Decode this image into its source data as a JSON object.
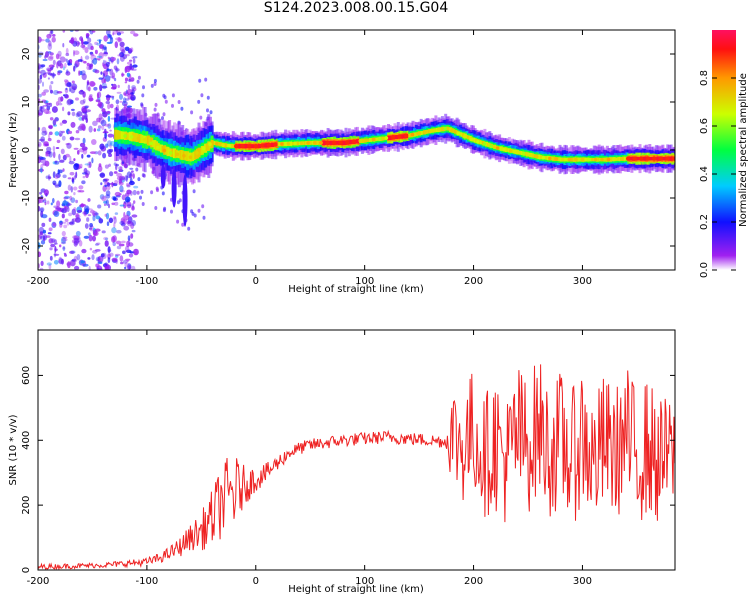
{
  "title": "S124.2023.008.00.15.G04",
  "colors": {
    "snr_line": "#ee2222",
    "axis": "#000000",
    "ridge": "rainbow"
  },
  "top_panel": {
    "xlabel": "Height of straight line (km)",
    "ylabel": "Frequency (Hz)",
    "colorbar_label": "Normalized spectral amplitude"
  },
  "bottom_panel": {
    "xlabel": "Height of straight line (km)",
    "ylabel": "SNR (10 * v/v)"
  },
  "chart_data": [
    {
      "type": "heatmap",
      "title": "S124.2023.008.00.15.G04",
      "xlabel": "Height of straight line (km)",
      "ylabel": "Frequency (Hz)",
      "xlim": [
        -200,
        385
      ],
      "ylim": [
        -25,
        25
      ],
      "x_ticks": [
        -200,
        -100,
        0,
        100,
        200,
        300
      ],
      "x_tick_labels": [
        "-200",
        "-100",
        "0",
        "100",
        "200",
        "300"
      ],
      "y_ticks": [
        20,
        10,
        0,
        -10,
        -20
      ],
      "y_tick_labels": [
        "20",
        "10",
        "0",
        "-10",
        "-20"
      ],
      "colorbar": {
        "label": "Normalized spectral amplitude",
        "range": [
          0,
          1
        ],
        "ticks": [
          0.0,
          0.2,
          0.4,
          0.6,
          0.8
        ],
        "tick_labels": [
          "0.0",
          "0.2",
          "0.4",
          "0.6",
          "0.8"
        ],
        "colormap": "rainbow"
      },
      "ridge": {
        "x": [
          -130,
          -115,
          -100,
          -90,
          -80,
          -70,
          -60,
          -50,
          -40,
          -30,
          -20,
          0,
          20,
          50,
          80,
          100,
          120,
          140,
          160,
          175,
          185,
          200,
          220,
          240,
          260,
          280,
          300,
          320,
          340,
          360,
          385
        ],
        "y": [
          3.2,
          2.8,
          2.0,
          0.5,
          -0.5,
          -1.0,
          -1.5,
          0.0,
          1.5,
          1.0,
          0.8,
          0.8,
          1.2,
          1.5,
          1.5,
          2.0,
          2.5,
          3.0,
          4.0,
          4.5,
          3.5,
          2.0,
          0.5,
          -0.5,
          -1.5,
          -2.0,
          -2.0,
          -2.0,
          -1.8,
          -1.8,
          -1.8
        ]
      }
    },
    {
      "type": "line",
      "xlabel": "Height of straight line (km)",
      "ylabel": "SNR (10 * v/v)",
      "xlim": [
        -200,
        385
      ],
      "ylim": [
        0,
        740
      ],
      "x_ticks": [
        -200,
        -100,
        0,
        100,
        200,
        300
      ],
      "x_tick_labels": [
        "-200",
        "-100",
        "0",
        "100",
        "200",
        "300"
      ],
      "y_ticks": [
        0,
        200,
        400,
        600
      ],
      "y_tick_labels": [
        "0",
        "200",
        "400",
        "600"
      ],
      "series": [
        {
          "x": [
            -200,
            -170,
            -140,
            -120,
            -100,
            -90,
            -80,
            -70,
            -60,
            -50,
            -40,
            -30,
            -20,
            -10,
            0,
            10,
            20,
            30,
            40,
            50,
            60,
            80,
            100,
            120,
            140,
            160,
            175,
            180,
            190,
            200,
            210,
            220,
            230,
            240,
            250,
            260,
            270,
            280,
            290,
            300,
            310,
            320,
            330,
            340,
            350,
            360,
            370,
            380,
            385
          ],
          "y": [
            10,
            12,
            15,
            20,
            25,
            35,
            50,
            70,
            100,
            120,
            160,
            220,
            240,
            260,
            280,
            300,
            330,
            360,
            375,
            385,
            390,
            400,
            405,
            410,
            405,
            400,
            395,
            420,
            380,
            430,
            350,
            400,
            330,
            420,
            380,
            450,
            360,
            400,
            340,
            420,
            330,
            390,
            360,
            410,
            350,
            380,
            330,
            360,
            350
          ],
          "spread": [
            8,
            8,
            8,
            10,
            12,
            15,
            20,
            30,
            40,
            60,
            90,
            120,
            120,
            60,
            40,
            30,
            25,
            20,
            20,
            20,
            20,
            20,
            20,
            20,
            20,
            20,
            20,
            160,
            180,
            200,
            190,
            220,
            200,
            230,
            210,
            220,
            200,
            220,
            210,
            230,
            200,
            220,
            200,
            230,
            210,
            220,
            200,
            180,
            160
          ]
        }
      ]
    }
  ]
}
